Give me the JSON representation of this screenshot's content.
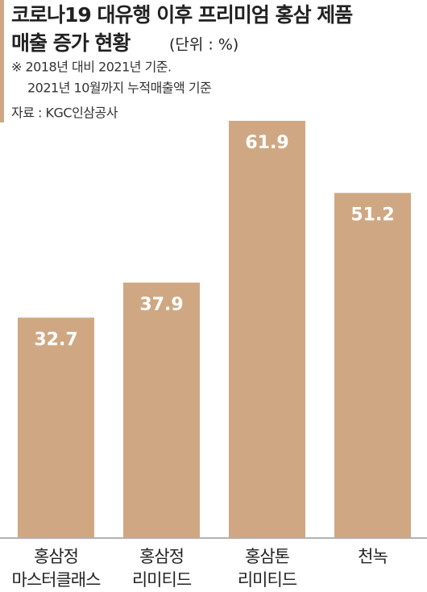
{
  "chart_data": {
    "type": "bar",
    "title": "코로나19 대유행 이후 프리미엄 홍삼 제품",
    "title_line2": "매출 증가 현황",
    "unit": "(단위 : %)",
    "notes": [
      "※ 2018년 대비 2021년 기준.",
      "2021년 10월까지 누적매출액 기준"
    ],
    "source": "자료 : KGC인삼공사",
    "categories": [
      [
        "홍삼정",
        "마스터클래스"
      ],
      [
        "홍삼정",
        "리미티드"
      ],
      [
        "홍삼톤",
        "리미티드"
      ],
      [
        "천녹",
        null
      ]
    ],
    "values": [
      32.7,
      37.9,
      61.9,
      51.2
    ],
    "color": "#cfa883",
    "ylim": [
      0,
      61.9
    ]
  }
}
